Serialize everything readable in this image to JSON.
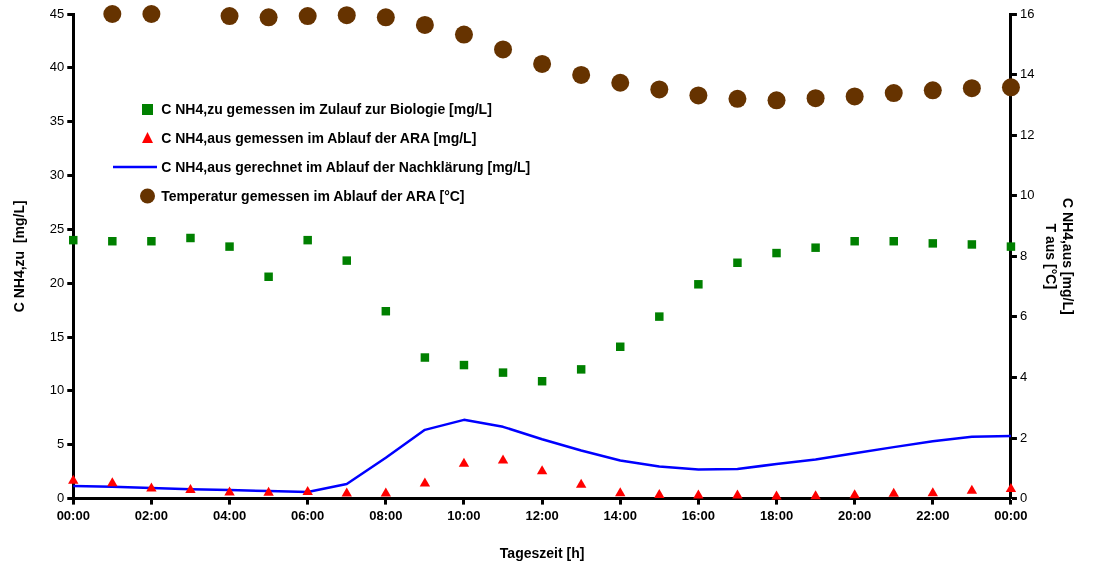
{
  "chart_data": {
    "type": "scatter",
    "xlabel": "Tageszeit [h]",
    "ylabel": "C NH4,zu  [mg/L]",
    "y2label": "C NH4,aus [mg/L]\nT aus [°C]",
    "x": [
      0,
      1,
      2,
      3,
      4,
      5,
      6,
      7,
      8,
      9,
      10,
      11,
      12,
      13,
      14,
      15,
      16,
      17,
      18,
      19,
      20,
      21,
      22,
      23,
      24
    ],
    "xlim": [
      0,
      24
    ],
    "xticks": [
      {
        "value": 0,
        "label": "00:00"
      },
      {
        "value": 2,
        "label": "02:00"
      },
      {
        "value": 4,
        "label": "04:00"
      },
      {
        "value": 6,
        "label": "06:00"
      },
      {
        "value": 8,
        "label": "08:00"
      },
      {
        "value": 10,
        "label": "10:00"
      },
      {
        "value": 12,
        "label": "12:00"
      },
      {
        "value": 14,
        "label": "14:00"
      },
      {
        "value": 16,
        "label": "16:00"
      },
      {
        "value": 18,
        "label": "18:00"
      },
      {
        "value": 20,
        "label": "20:00"
      },
      {
        "value": 22,
        "label": "22:00"
      },
      {
        "value": 24,
        "label": "00:00"
      }
    ],
    "ylim": [
      0,
      45
    ],
    "yticks": [
      0,
      5,
      10,
      15,
      20,
      25,
      30,
      35,
      40,
      45
    ],
    "y2lim": [
      0,
      16
    ],
    "y2ticks": [
      0,
      2,
      4,
      6,
      8,
      10,
      12,
      14,
      16
    ],
    "grid": false,
    "legend": "top left",
    "series": [
      {
        "name": "C NH4,zu gemessen im Zulauf zur Biologie [mg/L]",
        "type": "scatter",
        "marker": "square",
        "color": "#008000",
        "values": [
          24.0,
          23.9,
          23.9,
          24.2,
          23.4,
          20.6,
          24.0,
          22.1,
          17.4,
          13.1,
          12.4,
          11.7,
          10.9,
          12.0,
          14.1,
          16.9,
          19.9,
          21.9,
          22.8,
          23.3,
          23.9,
          23.9,
          23.7,
          23.6,
          23.4
        ]
      },
      {
        "name": "C NH4,aus gemessen im Ablauf der ARA [mg/L]",
        "type": "scatter",
        "marker": "triangle",
        "axis": "y2",
        "color": "#ff0000",
        "values": [
          0.59,
          0.51,
          0.33,
          0.28,
          0.2,
          0.19,
          0.22,
          0.17,
          0.17,
          0.5,
          1.15,
          1.26,
          0.9,
          0.46,
          0.18,
          0.12,
          0.1,
          0.1,
          0.07,
          0.08,
          0.11,
          0.16,
          0.18,
          0.26,
          0.32
        ]
      },
      {
        "name": "C NH4,aus gerechnet im Ablauf der Nachklärung [mg/L]",
        "type": "line",
        "marker": "none",
        "axis": "y2",
        "color": "#0000ff",
        "values": [
          0.42,
          0.39,
          0.35,
          0.31,
          0.28,
          0.25,
          0.22,
          0.48,
          1.35,
          2.27,
          2.6,
          2.37,
          1.96,
          1.59,
          1.26,
          1.06,
          0.96,
          0.98,
          1.14,
          1.29,
          1.5,
          1.7,
          1.89,
          2.04,
          2.07
        ]
      },
      {
        "name": "Temperatur gemessen im Ablauf der ARA [°C]",
        "type": "scatter",
        "marker": "circle",
        "axis": "y2",
        "color": "#663300",
        "values": [
          null,
          16.0,
          16.0,
          null,
          15.93,
          15.89,
          15.93,
          15.96,
          15.89,
          15.64,
          15.32,
          14.83,
          14.35,
          13.99,
          13.73,
          13.51,
          13.31,
          13.2,
          13.15,
          13.22,
          13.28,
          13.39,
          13.48,
          13.55,
          13.58
        ]
      }
    ]
  }
}
